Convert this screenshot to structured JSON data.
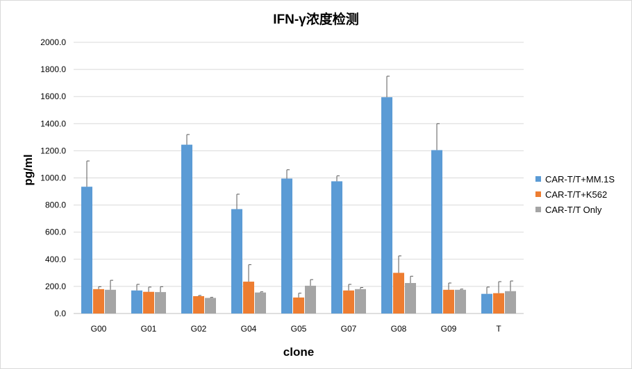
{
  "chart_data": {
    "type": "bar",
    "title": "IFN-γ浓度检测",
    "xlabel": "clone",
    "ylabel": "pg/ml",
    "ylim": [
      0,
      2000
    ],
    "yticks": [
      "0.0",
      "200.0",
      "400.0",
      "600.0",
      "800.0",
      "1000.0",
      "1200.0",
      "1400.0",
      "1600.0",
      "1800.0",
      "2000.0"
    ],
    "categories": [
      "G00",
      "G01",
      "G02",
      "G04",
      "G05",
      "G07",
      "G08",
      "G09",
      "T"
    ],
    "series": [
      {
        "name": "CAR-T/T+MM.1S",
        "color": "#5b9bd5",
        "values": [
          935,
          170,
          1245,
          770,
          995,
          975,
          1595,
          1205,
          145
        ],
        "errors": [
          190,
          45,
          75,
          110,
          65,
          40,
          155,
          195,
          50
        ]
      },
      {
        "name": "CAR-T/T+K562",
        "color": "#ed7d31",
        "values": [
          180,
          160,
          128,
          235,
          118,
          170,
          300,
          175,
          150
        ],
        "errors": [
          18,
          35,
          5,
          125,
          32,
          45,
          125,
          50,
          85
        ]
      },
      {
        "name": "CAR-T/T Only",
        "color": "#a5a5a5",
        "values": [
          175,
          158,
          115,
          155,
          205,
          180,
          225,
          175,
          165
        ],
        "errors": [
          70,
          40,
          4,
          5,
          45,
          12,
          50,
          5,
          75
        ]
      }
    ],
    "grid": true,
    "legend": "right"
  }
}
